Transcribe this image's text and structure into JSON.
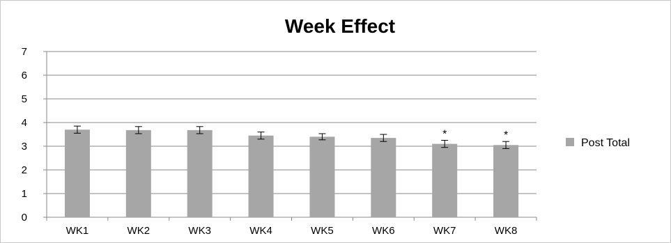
{
  "chart_data": {
    "type": "bar",
    "title": "Week Effect",
    "xlabel": "",
    "ylabel": "",
    "categories": [
      "WK1",
      "WK2",
      "WK3",
      "WK4",
      "WK5",
      "WK6",
      "WK7",
      "WK8"
    ],
    "series": [
      {
        "name": "Post Total",
        "values": [
          3.7,
          3.68,
          3.68,
          3.45,
          3.4,
          3.35,
          3.1,
          3.05
        ],
        "error": [
          0.15,
          0.15,
          0.15,
          0.15,
          0.13,
          0.15,
          0.15,
          0.15
        ],
        "color": "#a6a6a6"
      }
    ],
    "annotations": [
      "",
      "",
      "",
      "",
      "",
      "",
      "*",
      "*"
    ],
    "ylim": [
      0,
      7
    ],
    "yticks": [
      "0",
      "1",
      "2",
      "3",
      "4",
      "5",
      "6",
      "7"
    ],
    "grid": "horizontal",
    "legend_position": "right"
  }
}
